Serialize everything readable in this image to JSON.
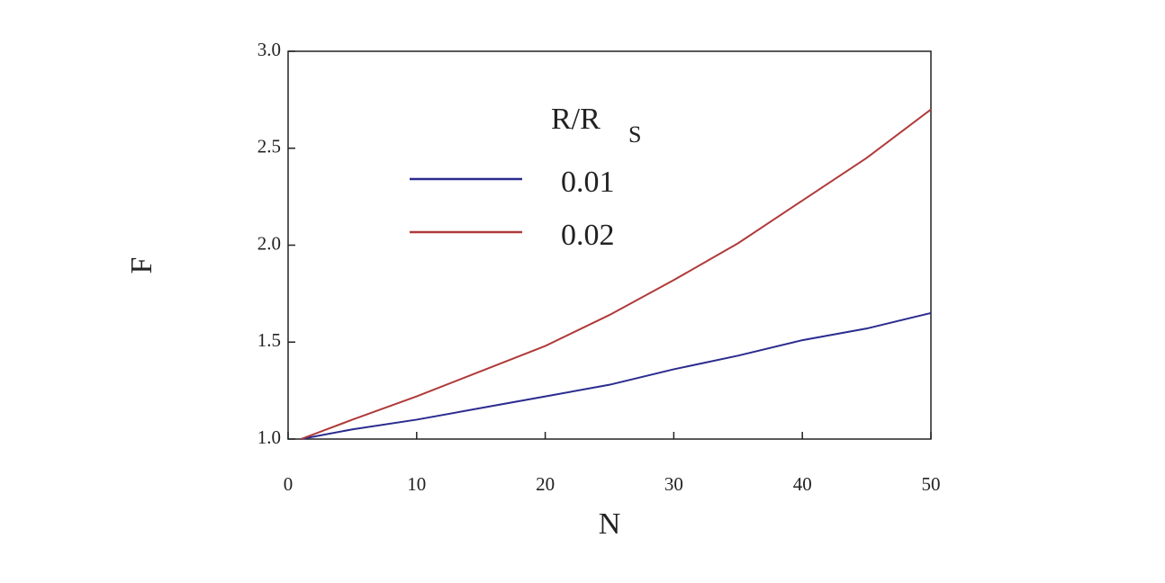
{
  "chart_data": {
    "type": "line",
    "x_label": "N",
    "y_label": "F",
    "legend_title": {
      "text": "R/R",
      "subscript": "S"
    },
    "x": [
      1,
      5,
      10,
      15,
      20,
      25,
      30,
      35,
      40,
      45,
      50
    ],
    "series": [
      {
        "name": "0.01",
        "color": "#2b2b8f",
        "values": [
          1.0,
          1.05,
          1.1,
          1.16,
          1.22,
          1.28,
          1.36,
          1.43,
          1.51,
          1.57,
          1.65
        ]
      },
      {
        "name": "0.02",
        "color": "#b03a3a",
        "values": [
          1.0,
          1.1,
          1.22,
          1.35,
          1.48,
          1.64,
          1.82,
          2.01,
          2.23,
          2.45,
          2.7
        ]
      }
    ],
    "xlim": [
      0,
      50
    ],
    "xticks": [
      0,
      10,
      20,
      30,
      40,
      50
    ],
    "ylim": [
      1.0,
      3.0
    ],
    "yticks": [
      {
        "value": 1.0,
        "label": "1.0"
      },
      1.5,
      {
        "value": 2.0,
        "label": "2.0"
      },
      2.5,
      {
        "value": 3.0,
        "label": "3.0"
      }
    ]
  }
}
